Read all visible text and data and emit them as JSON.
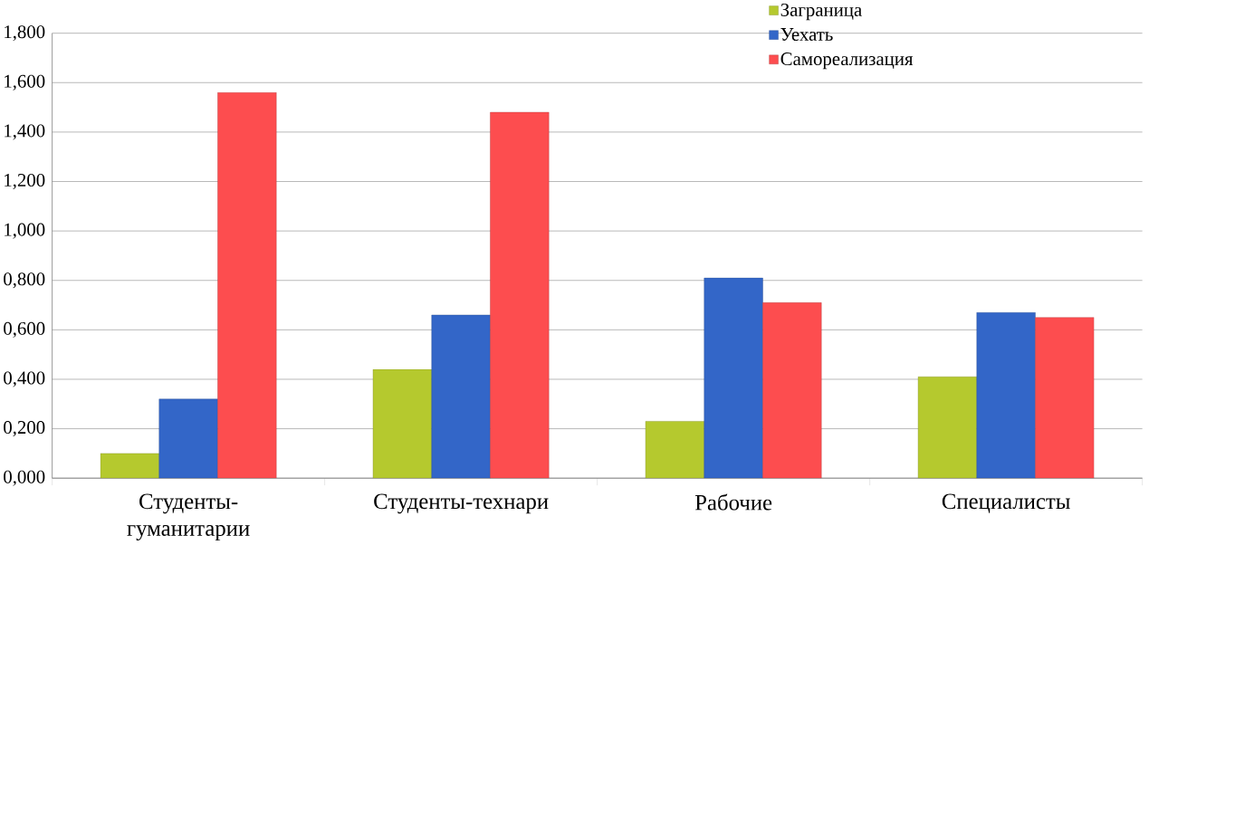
{
  "chart_data": {
    "type": "bar",
    "categories": [
      "Студенты-гуманитарии",
      "Студенты-технари",
      "Рабочие",
      "Специалисты"
    ],
    "series": [
      {
        "name": "Заграница",
        "color": "#b5c92e",
        "values": [
          0.1,
          0.44,
          0.23,
          0.41
        ]
      },
      {
        "name": "Уехать",
        "color": "#3366c8",
        "values": [
          0.32,
          0.66,
          0.81,
          0.67
        ]
      },
      {
        "name": "Самореализация",
        "color": "#fd4d4f",
        "values": [
          1.56,
          1.48,
          0.71,
          0.65
        ]
      }
    ],
    "ylim": [
      0,
      1.8
    ],
    "yticks": [
      {
        "value": 0,
        "label": "0,000"
      },
      {
        "value": 0.2,
        "label": "0,200"
      },
      {
        "value": 0.4,
        "label": "0,400"
      },
      {
        "value": 0.6,
        "label": "0,600"
      },
      {
        "value": 0.8,
        "label": "0,800"
      },
      {
        "value": 1.0,
        "label": "1,000"
      },
      {
        "value": 1.2,
        "label": "1,200"
      },
      {
        "value": 1.4,
        "label": "1,400"
      },
      {
        "value": 1.6,
        "label": "1,600"
      },
      {
        "value": 1.8,
        "label": "1,800"
      }
    ],
    "grid": "y",
    "legend": "top right"
  }
}
